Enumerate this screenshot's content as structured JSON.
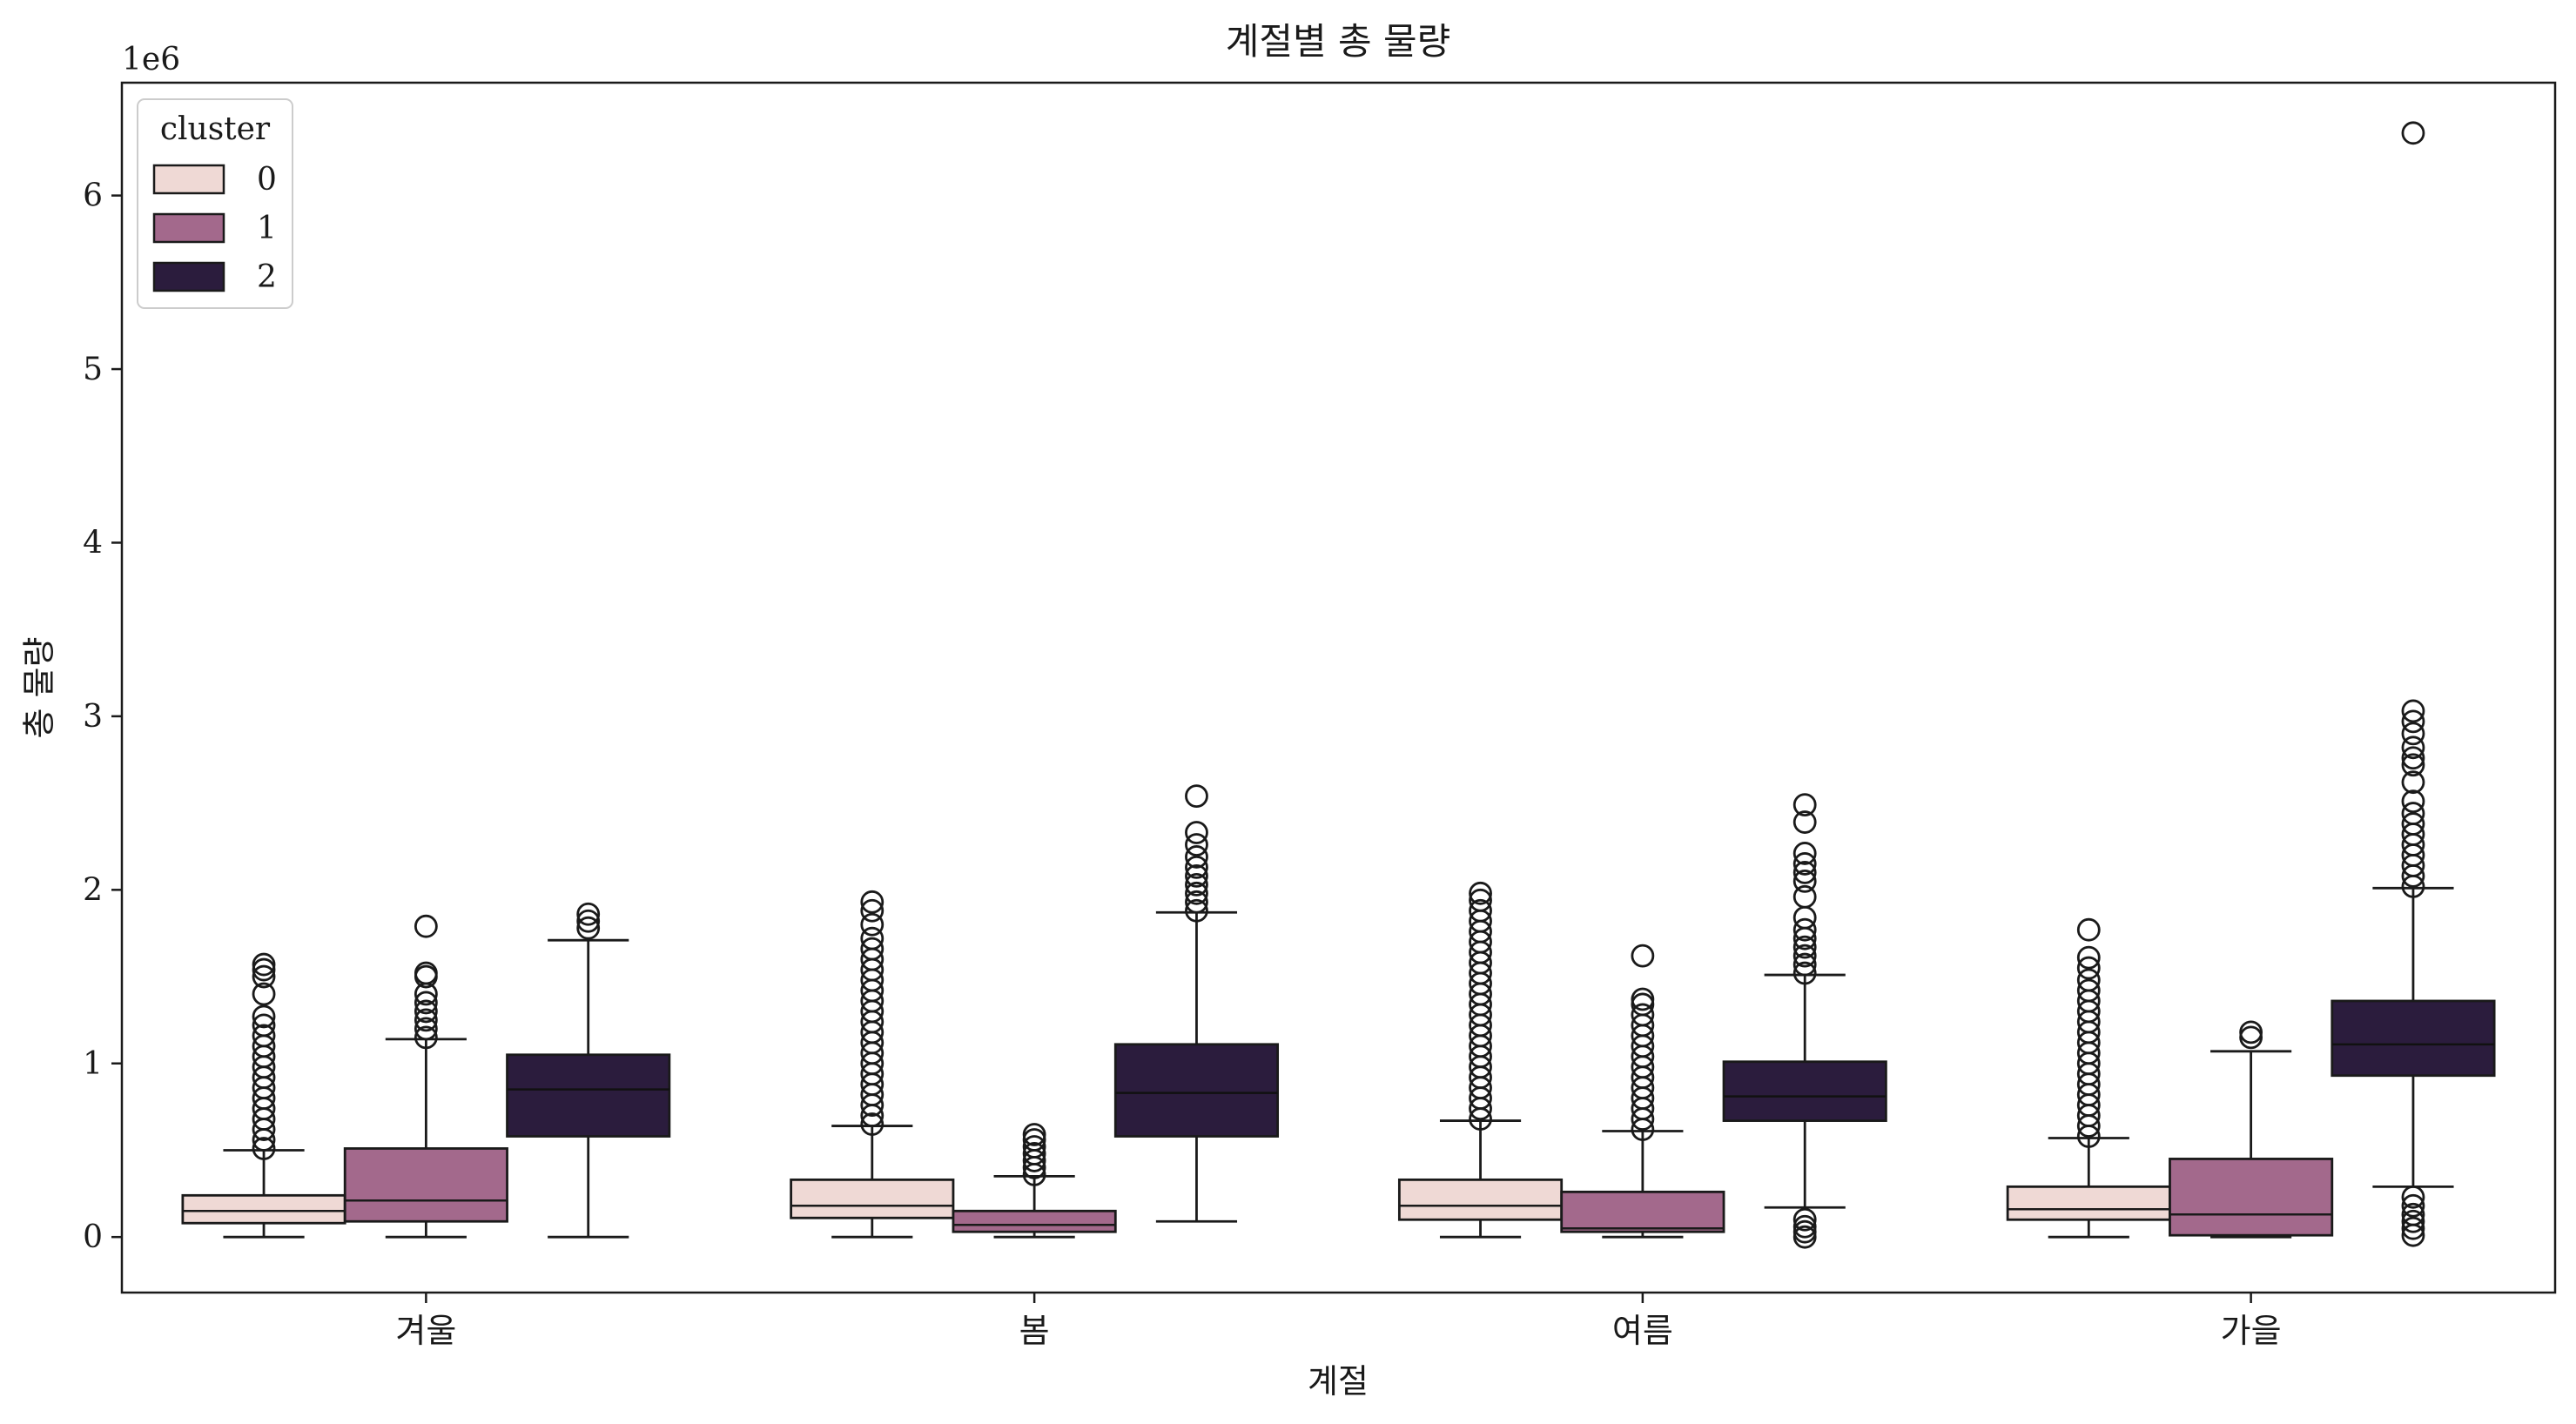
{
  "chart_data": {
    "type": "box",
    "title": "계절별 총 물량",
    "xlabel": "계절",
    "ylabel": "총 물량",
    "y_scale_label": "1e6",
    "y_scale": 1000000,
    "ylim": [
      -0.32,
      6.65
    ],
    "yticks": [
      0,
      1,
      2,
      3,
      4,
      5,
      6
    ],
    "ytick_labels": [
      "0",
      "1",
      "2",
      "3",
      "4",
      "5",
      "6"
    ],
    "categories": [
      "겨울",
      "봄",
      "여름",
      "가을"
    ],
    "legend": {
      "title": "cluster",
      "position": "upper-left",
      "entries": [
        "0",
        "1",
        "2"
      ]
    },
    "colors": {
      "0": "#efd9d5",
      "1": "#a3698c",
      "2": "#2b1c3d",
      "stroke": "#1a1a1a"
    },
    "series": [
      {
        "name": "0",
        "boxes": [
          {
            "whisker_low": 0.0,
            "q1": 0.08,
            "median": 0.15,
            "q3": 0.24,
            "whisker_high": 0.5,
            "outliers": [
              0.51,
              0.56,
              0.62,
              0.68,
              0.74,
              0.8,
              0.86,
              0.92,
              0.98,
              1.04,
              1.1,
              1.16,
              1.22,
              1.27,
              1.4,
              1.5,
              1.54,
              1.57
            ]
          },
          {
            "whisker_low": 0.0,
            "q1": 0.11,
            "median": 0.18,
            "q3": 0.33,
            "whisker_high": 0.64,
            "outliers": [
              0.65,
              0.7,
              0.76,
              0.82,
              0.88,
              0.94,
              1.0,
              1.06,
              1.12,
              1.18,
              1.24,
              1.3,
              1.36,
              1.42,
              1.48,
              1.54,
              1.6,
              1.66,
              1.72,
              1.8,
              1.88,
              1.93
            ]
          },
          {
            "whisker_low": 0.0,
            "q1": 0.1,
            "median": 0.18,
            "q3": 0.33,
            "whisker_high": 0.67,
            "outliers": [
              0.68,
              0.74,
              0.8,
              0.86,
              0.92,
              0.98,
              1.04,
              1.1,
              1.16,
              1.22,
              1.28,
              1.34,
              1.4,
              1.46,
              1.52,
              1.58,
              1.64,
              1.7,
              1.76,
              1.82,
              1.88,
              1.94,
              1.98
            ]
          },
          {
            "whisker_low": 0.0,
            "q1": 0.1,
            "median": 0.16,
            "q3": 0.29,
            "whisker_high": 0.57,
            "outliers": [
              0.58,
              0.64,
              0.7,
              0.76,
              0.82,
              0.88,
              0.94,
              1.0,
              1.06,
              1.12,
              1.18,
              1.24,
              1.3,
              1.36,
              1.42,
              1.48,
              1.55,
              1.61,
              1.77
            ]
          }
        ]
      },
      {
        "name": "1",
        "boxes": [
          {
            "whisker_low": 0.0,
            "q1": 0.09,
            "median": 0.21,
            "q3": 0.51,
            "whisker_high": 1.14,
            "outliers": [
              1.15,
              1.2,
              1.25,
              1.3,
              1.35,
              1.4,
              1.5,
              1.52,
              1.79
            ]
          },
          {
            "whisker_low": 0.0,
            "q1": 0.03,
            "median": 0.07,
            "q3": 0.15,
            "whisker_high": 0.35,
            "outliers": [
              0.36,
              0.4,
              0.44,
              0.48,
              0.52,
              0.56,
              0.59
            ]
          },
          {
            "whisker_low": 0.0,
            "q1": 0.03,
            "median": 0.05,
            "q3": 0.26,
            "whisker_high": 0.61,
            "outliers": [
              0.62,
              0.68,
              0.74,
              0.8,
              0.86,
              0.92,
              0.98,
              1.04,
              1.1,
              1.16,
              1.22,
              1.28,
              1.34,
              1.37,
              1.62
            ]
          },
          {
            "whisker_low": 0.0,
            "q1": 0.01,
            "median": 0.13,
            "q3": 0.45,
            "whisker_high": 1.07,
            "outliers": [
              1.15,
              1.18
            ]
          }
        ]
      },
      {
        "name": "2",
        "boxes": [
          {
            "whisker_low": 0.0,
            "q1": 0.58,
            "median": 0.85,
            "q3": 1.05,
            "whisker_high": 1.71,
            "outliers": [
              1.78,
              1.82,
              1.86
            ]
          },
          {
            "whisker_low": 0.09,
            "q1": 0.58,
            "median": 0.83,
            "q3": 1.11,
            "whisker_high": 1.87,
            "outliers": [
              1.88,
              1.93,
              1.98,
              2.03,
              2.08,
              2.13,
              2.19,
              2.26,
              2.33,
              2.54
            ]
          },
          {
            "whisker_low": 0.17,
            "q1": 0.67,
            "median": 0.81,
            "q3": 1.01,
            "whisker_high": 1.51,
            "outliers": [
              0.0,
              0.03,
              0.06,
              0.1,
              1.52,
              1.57,
              1.62,
              1.67,
              1.72,
              1.77,
              1.84,
              1.96,
              2.05,
              2.1,
              2.15,
              2.21,
              2.39,
              2.49
            ]
          },
          {
            "whisker_low": 0.29,
            "q1": 0.93,
            "median": 1.11,
            "q3": 1.36,
            "whisker_high": 2.01,
            "outliers": [
              0.01,
              0.05,
              0.09,
              0.13,
              0.18,
              0.23,
              2.02,
              2.08,
              2.14,
              2.2,
              2.26,
              2.32,
              2.38,
              2.44,
              2.51,
              2.62,
              2.72,
              2.76,
              2.82,
              2.9,
              2.97,
              3.03,
              6.36
            ]
          }
        ]
      }
    ]
  }
}
